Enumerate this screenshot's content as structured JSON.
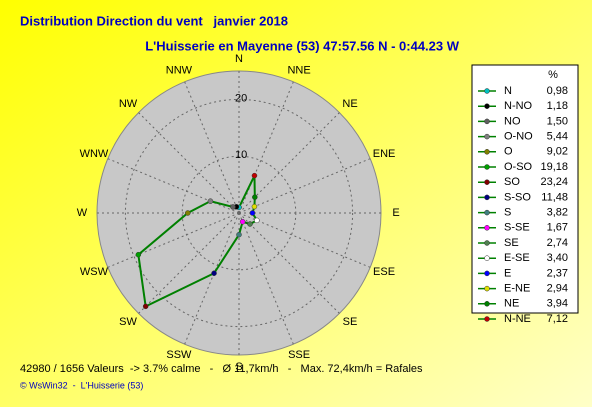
{
  "chart_data": {
    "type": "polar",
    "title": "Distribution Direction du vent   janvier 2018",
    "subtitle": "L'Huisserie en Mayenne (53) 47:57.56 N - 0:44.23 W",
    "axis_labels": [
      "N",
      "NNE",
      "NE",
      "ENE",
      "E",
      "ESE",
      "SE",
      "SSE",
      "S",
      "SSW",
      "SW",
      "WSW",
      "W",
      "WNW",
      "NW",
      "NNW"
    ],
    "categories": [
      "N",
      "N-NO",
      "NO",
      "O-NO",
      "O",
      "O-SO",
      "SO",
      "S-SO",
      "S",
      "S-SE",
      "SE",
      "E-SE",
      "E",
      "E-NE",
      "NE",
      "N-NE"
    ],
    "values": [
      0.98,
      1.18,
      1.5,
      5.44,
      9.02,
      19.18,
      23.24,
      11.48,
      3.82,
      1.67,
      2.74,
      3.4,
      2.37,
      2.94,
      3.94,
      7.12
    ],
    "value_labels": [
      "0,98",
      "1,18",
      "1,50",
      "5,44",
      "9,02",
      "19,18",
      "23,24",
      "11,48",
      "3,82",
      "1,67",
      "2,74",
      "3,40",
      "2,37",
      "2,94",
      "3,94",
      "7,12"
    ],
    "marker_colors": [
      "#00c0c0",
      "#000000",
      "#606060",
      "#808080",
      "#808000",
      "#00a000",
      "#800000",
      "#000080",
      "#408080",
      "#ff00ff",
      "#508050",
      "#ffffff",
      "#0000ff",
      "#e0e000",
      "#008000",
      "#c00000"
    ],
    "color": "#008000",
    "legend_header": "%",
    "rlim": [
      0,
      25
    ],
    "rticks": [
      10,
      20
    ],
    "footer": "42980 / 1656 Valeurs  -> 3.7% calme   -   Ø 11,7km/h   -   Max. 72,4km/h = Rafales",
    "credit": "© WsWin32  -  L'Huisserie (53)"
  }
}
